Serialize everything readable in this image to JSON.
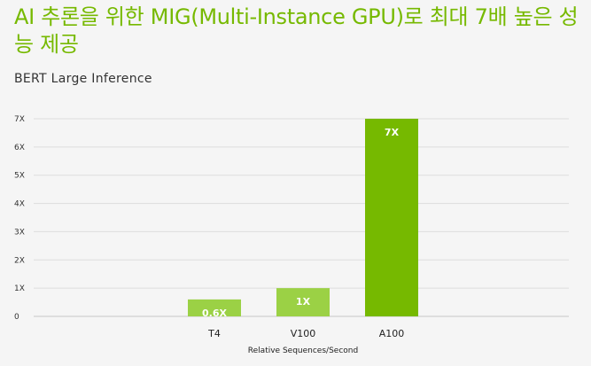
{
  "page": {
    "title": "AI 추론을 위한 MIG(Multi-Instance GPU)로 최대 7배 높은 성능 제공",
    "subtitle": "BERT Large Inference"
  },
  "colors": {
    "accent": "#76b900",
    "bar_light": "#9bd145",
    "gridline": "#dddddd",
    "axis": "#c8c8c8"
  },
  "chart_data": {
    "type": "bar",
    "title": "BERT Large Inference",
    "categories": [
      "T4",
      "V100",
      "A100"
    ],
    "values": [
      0.6,
      1,
      7
    ],
    "data_labels": [
      "0.6X",
      "1X",
      "7X"
    ],
    "xlabel": "Relative Sequences/Second",
    "ylabel": "",
    "ylim": [
      0,
      7
    ],
    "yticks": [
      0,
      1,
      2,
      3,
      4,
      5,
      6,
      7
    ],
    "ytick_labels": [
      "0",
      "1X",
      "2X",
      "3X",
      "4X",
      "5X",
      "6X",
      "7X"
    ],
    "grid": true,
    "legend": "none"
  }
}
